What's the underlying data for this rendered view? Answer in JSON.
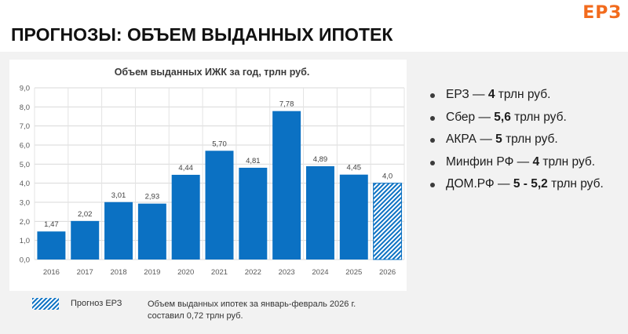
{
  "brand": {
    "logo": "ЕРЗ",
    "accent": "#f26b1d"
  },
  "header": {
    "title": "ПРОГНОЗЫ: ОБЪЕМ ВЫДАННЫХ ИПОТЕК"
  },
  "chart_data": {
    "type": "bar",
    "title": "Объем выданных ИЖК за год, трлн руб.",
    "categories": [
      "2016",
      "2017",
      "2018",
      "2019",
      "2020",
      "2021",
      "2022",
      "2023",
      "2024",
      "2025",
      "2026"
    ],
    "values": [
      1.47,
      2.02,
      3.01,
      2.93,
      4.44,
      5.7,
      4.81,
      7.78,
      4.89,
      4.45,
      4.0
    ],
    "data_labels": [
      "1,47",
      "2,02",
      "3,01",
      "2,93",
      "4,44",
      "5,70",
      "4,81",
      "7,78",
      "4,89",
      "4,45",
      "4,0"
    ],
    "forecast_categories": [
      "2026"
    ],
    "ylim": [
      0,
      9
    ],
    "yticks": [
      "0,0",
      "1,0",
      "2,0",
      "3,0",
      "4,0",
      "5,0",
      "6,0",
      "7,0",
      "8,0",
      "9,0"
    ],
    "grid": true,
    "bar_color": "#0b71c3",
    "legend": {
      "entries": [
        "Прогноз ЕРЗ"
      ],
      "placement": "bottom-left"
    }
  },
  "forecasts": [
    {
      "source": "ЕРЗ",
      "value": "4",
      "unit": "трлн руб."
    },
    {
      "source": "Сбер",
      "value": "5,6",
      "unit": "трлн руб."
    },
    {
      "source": "АКРА",
      "value": "5",
      "unit": "трлн руб."
    },
    {
      "source": "Минфин РФ",
      "value": "4",
      "unit": "трлн руб."
    },
    {
      "source": "ДОМ.РФ",
      "value": "5 - 5,2",
      "unit": "трлн руб."
    }
  ],
  "footnote": {
    "line1": "Объем выданных ипотек за январь-февраль 2026 г.",
    "line2": "составил 0,72 трлн руб."
  }
}
